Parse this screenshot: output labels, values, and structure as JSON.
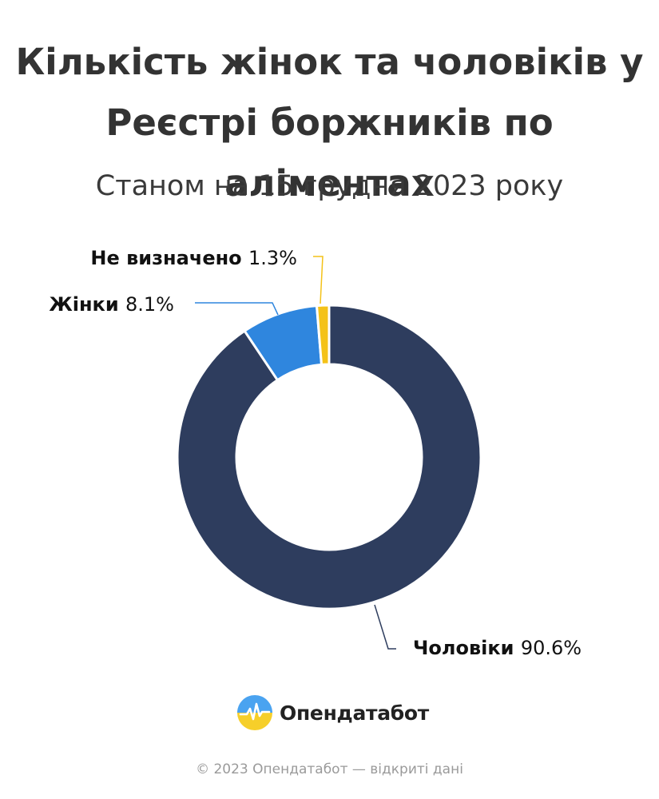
{
  "title_line1": "Кількість жінок та чоловіків у",
  "title_line2": "Реєстрі боржників по аліментах",
  "subtitle": "Станом на 15 грудня 2023 року",
  "chart_data": {
    "type": "pie",
    "title": "Кількість жінок та чоловіків у Реєстрі боржників по аліментах",
    "subtitle": "Станом на 15 грудня 2023 року",
    "unit": "%",
    "categories": [
      "Чоловіки",
      "Жінки",
      "Не визначено"
    ],
    "values": [
      90.6,
      8.1,
      1.3
    ],
    "value_labels": [
      "90.6%",
      "8.1%",
      "1.3%"
    ],
    "colors": [
      "#2e3d5e",
      "#2f86de",
      "#f4c218"
    ],
    "legend": "none",
    "donut": true
  },
  "brand": {
    "name": "Опендатабот",
    "logo_icon": "opendatabot-logo-icon"
  },
  "footer": "© 2023 Опендатабот — відкриті дані"
}
